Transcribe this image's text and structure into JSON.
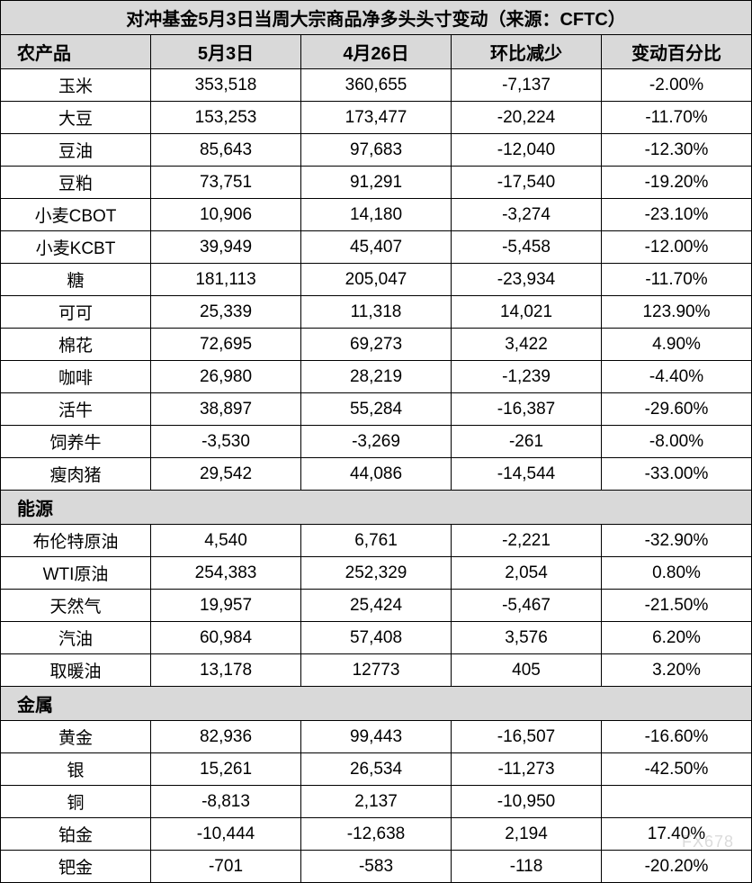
{
  "title": "对冲基金5月3日当周大宗商品净多头头寸变动（来源：CFTC）",
  "columns": [
    "农产品",
    "5月3日",
    "4月26日",
    "环比减少",
    "变动百分比"
  ],
  "column_widths": [
    "22%",
    "19.5%",
    "19.5%",
    "19.5%",
    "19.5%"
  ],
  "sections": [
    {
      "category_in_header": true,
      "rows": [
        {
          "name": "玉米",
          "v1": "353,518",
          "v2": "360,655",
          "diff": "-7,137",
          "pct": "-2.00%"
        },
        {
          "name": "大豆",
          "v1": "153,253",
          "v2": "173,477",
          "diff": "-20,224",
          "pct": "-11.70%"
        },
        {
          "name": "豆油",
          "v1": "85,643",
          "v2": "97,683",
          "diff": "-12,040",
          "pct": "-12.30%"
        },
        {
          "name": "豆粕",
          "v1": "73,751",
          "v2": "91,291",
          "diff": "-17,540",
          "pct": "-19.20%"
        },
        {
          "name": "小麦CBOT",
          "v1": "10,906",
          "v2": "14,180",
          "diff": "-3,274",
          "pct": "-23.10%"
        },
        {
          "name": "小麦KCBT",
          "v1": "39,949",
          "v2": "45,407",
          "diff": "-5,458",
          "pct": "-12.00%"
        },
        {
          "name": "糖",
          "v1": "181,113",
          "v2": "205,047",
          "diff": "-23,934",
          "pct": "-11.70%"
        },
        {
          "name": "可可",
          "v1": "25,339",
          "v2": "11,318",
          "diff": "14,021",
          "pct": "123.90%"
        },
        {
          "name": "棉花",
          "v1": "72,695",
          "v2": "69,273",
          "diff": "3,422",
          "pct": "4.90%"
        },
        {
          "name": "咖啡",
          "v1": "26,980",
          "v2": "28,219",
          "diff": "-1,239",
          "pct": "-4.40%"
        },
        {
          "name": "活牛",
          "v1": "38,897",
          "v2": "55,284",
          "diff": "-16,387",
          "pct": "-29.60%"
        },
        {
          "name": "饲养牛",
          "v1": "-3,530",
          "v2": "-3,269",
          "diff": "-261",
          "pct": "-8.00%"
        },
        {
          "name": "瘦肉猪",
          "v1": "29,542",
          "v2": "44,086",
          "diff": "-14,544",
          "pct": "-33.00%"
        }
      ]
    },
    {
      "category": "能源",
      "rows": [
        {
          "name": "布伦特原油",
          "v1": "4,540",
          "v2": "6,761",
          "diff": "-2,221",
          "pct": "-32.90%"
        },
        {
          "name": "WTI原油",
          "v1": "254,383",
          "v2": "252,329",
          "diff": "2,054",
          "pct": "0.80%"
        },
        {
          "name": "天然气",
          "v1": "19,957",
          "v2": "25,424",
          "diff": "-5,467",
          "pct": "-21.50%"
        },
        {
          "name": "汽油",
          "v1": "60,984",
          "v2": "57,408",
          "diff": "3,576",
          "pct": "6.20%"
        },
        {
          "name": "取暖油",
          "v1": "13,178",
          "v2": "12773",
          "diff": "405",
          "pct": "3.20%"
        }
      ]
    },
    {
      "category": "金属",
      "rows": [
        {
          "name": "黄金",
          "v1": "82,936",
          "v2": "99,443",
          "diff": "-16,507",
          "pct": "-16.60%"
        },
        {
          "name": "银",
          "v1": "15,261",
          "v2": "26,534",
          "diff": "-11,273",
          "pct": "-42.50%"
        },
        {
          "name": "铜",
          "v1": "-8,813",
          "v2": "2,137",
          "diff": "-10,950",
          "pct": ""
        },
        {
          "name": "铂金",
          "v1": "-10,444",
          "v2": "-12,638",
          "diff": "2,194",
          "pct": "17.40%"
        },
        {
          "name": "钯金",
          "v1": "-701",
          "v2": "-583",
          "diff": "-118",
          "pct": "-20.20%"
        }
      ]
    }
  ],
  "watermark": "FX678",
  "colors": {
    "header_bg": "#d9d9d9",
    "border": "#000000",
    "text": "#000000",
    "background": "#ffffff"
  },
  "typography": {
    "title_fontsize": 20,
    "header_fontsize": 20,
    "cell_fontsize": 19,
    "font_family": "Microsoft YaHei"
  }
}
